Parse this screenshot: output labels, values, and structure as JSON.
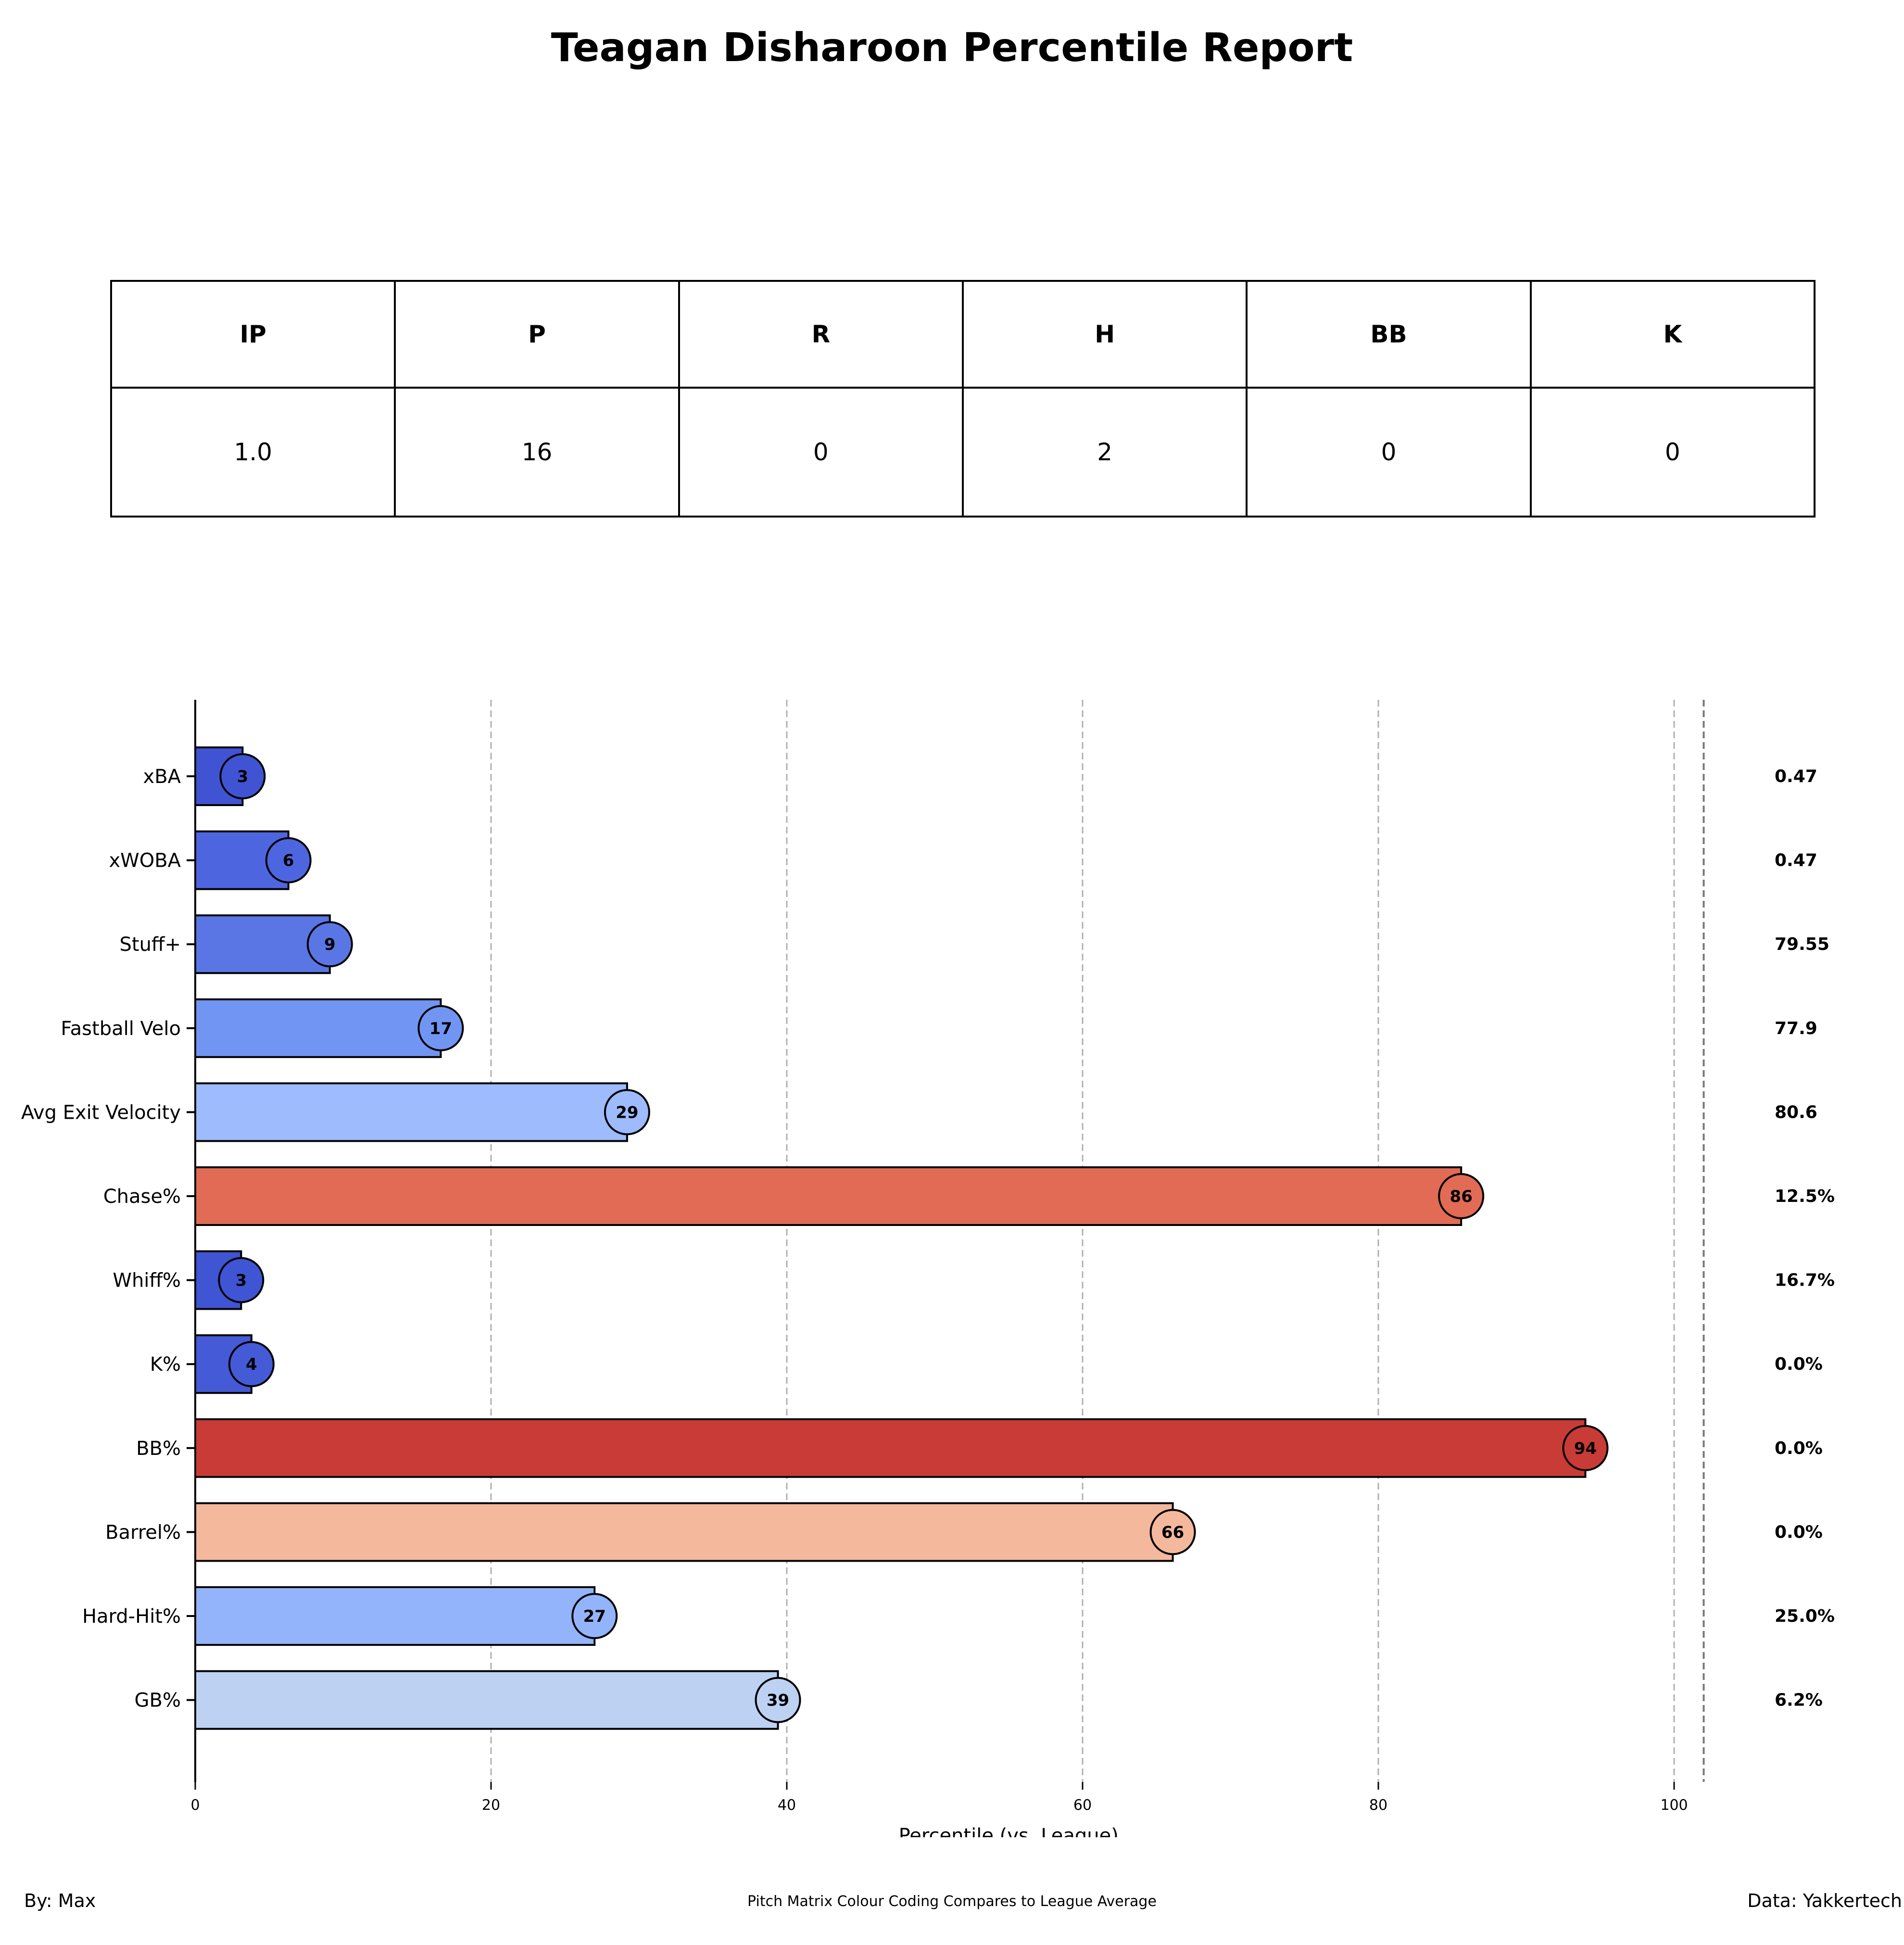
{
  "title": "Teagan Disharoon Percentile Report",
  "table": {
    "headers": [
      "IP",
      "P",
      "R",
      "H",
      "BB",
      "K"
    ],
    "values": [
      "1.0",
      "16",
      "0",
      "2",
      "0",
      "0"
    ]
  },
  "chart_data": {
    "type": "bar",
    "orientation": "horizontal",
    "categories": [
      "xBA",
      "xWOBA",
      "Stuff+",
      "Fastball Velo",
      "Avg Exit Velocity",
      "Chase%",
      "Whiff%",
      "K%",
      "BB%",
      "Barrel%",
      "Hard-Hit%",
      "GB%"
    ],
    "values": [
      3.2,
      6.3,
      9.1,
      16.6,
      29.2,
      85.6,
      3.1,
      3.8,
      94.0,
      66.1,
      27.0,
      39.4
    ],
    "data_labels": [
      "3",
      "6",
      "9",
      "17",
      "29",
      "86",
      "3",
      "4",
      "94",
      "66",
      "27",
      "39"
    ],
    "stat_values": [
      "0.47",
      "0.47",
      "79.55",
      "77.9",
      "80.6",
      "12.5%",
      "16.7%",
      "0.0%",
      "0.0%",
      "0.0%",
      "25.0%",
      "6.2%"
    ],
    "colors": [
      "#4054d3",
      "#4d66e0",
      "#5a76e5",
      "#7195f2",
      "#9dbbfd",
      "#e16b54",
      "#3f55d3",
      "#445ad6",
      "#c93b37",
      "#f4b89d",
      "#93b4fb",
      "#bdd1f3"
    ],
    "xlabel": "Percentile (vs. League)",
    "ylabel": "",
    "xlim": [
      0,
      110
    ],
    "xticks": [
      0,
      20,
      40,
      60,
      80,
      100
    ],
    "grid": "vertical dashed"
  },
  "footer": {
    "left": "By: Max",
    "center": "Pitch Matrix Colour Coding Compares to League Average",
    "right": "Data: Yakkertech"
  }
}
